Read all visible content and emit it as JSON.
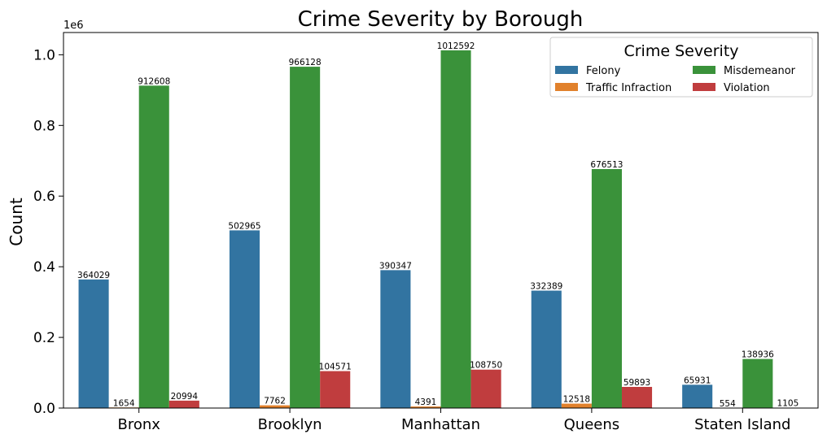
{
  "chart_data": {
    "type": "bar",
    "title": "Crime Severity by Borough",
    "xlabel": "",
    "ylabel": "Count",
    "y_scale_label": "1e6",
    "ylim": [
      0,
      1063000
    ],
    "y_ticks": [
      0,
      200000,
      400000,
      600000,
      800000,
      1000000
    ],
    "y_tick_labels": [
      "0.0",
      "0.2",
      "0.4",
      "0.6",
      "0.8",
      "1.0"
    ],
    "grid": false,
    "legend": {
      "title": "Crime Severity",
      "position": "top-right",
      "columns": 2
    },
    "categories": [
      "Bronx",
      "Brooklyn",
      "Manhattan",
      "Queens",
      "Staten Island"
    ],
    "series": [
      {
        "name": "Felony",
        "color": "#3274a1",
        "values": [
          364029,
          502965,
          390347,
          332389,
          65931
        ]
      },
      {
        "name": "Traffic Infraction",
        "color": "#e1812c",
        "values": [
          1654,
          7762,
          4391,
          12518,
          554
        ]
      },
      {
        "name": "Misdemeanor",
        "color": "#3a923a",
        "values": [
          912608,
          966128,
          1012592,
          676513,
          138936
        ]
      },
      {
        "name": "Violation",
        "color": "#c03d3e",
        "values": [
          20994,
          104571,
          108750,
          59893,
          1105
        ]
      }
    ]
  }
}
